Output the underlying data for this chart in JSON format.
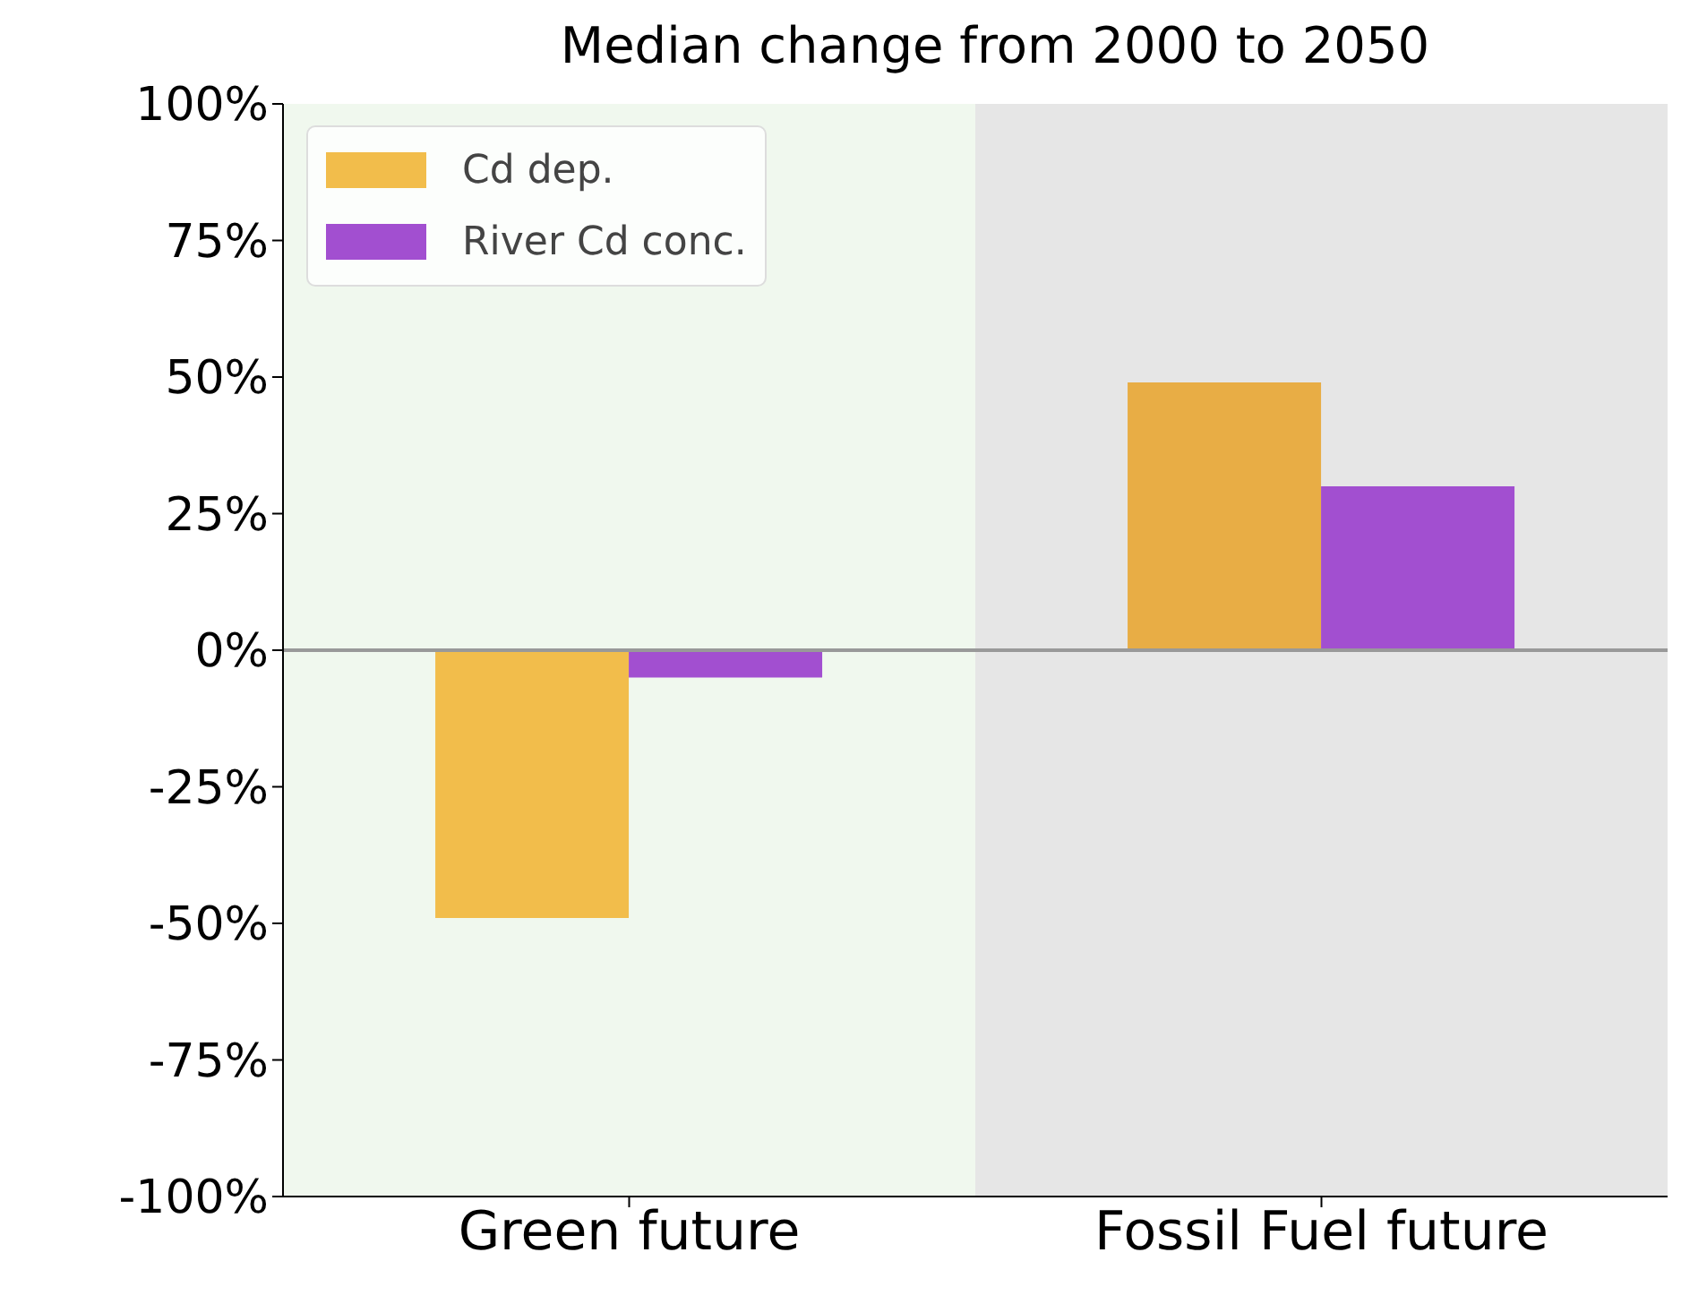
{
  "chart_data": {
    "type": "bar",
    "title": "Median change from 2000 to 2050",
    "categories": [
      "Green future",
      "Fossil Fuel future"
    ],
    "series": [
      {
        "name": "Cd dep.",
        "color": "#f2bd4b",
        "colors": [
          "#f2bd4b",
          "#e8ad45"
        ],
        "values": [
          -49,
          49
        ]
      },
      {
        "name": "River Cd conc.",
        "color": "#a24fd0",
        "values": [
          -5,
          30
        ]
      }
    ],
    "ylim": [
      -100,
      100
    ],
    "yticks": [
      {
        "value": -100,
        "label": "-100%"
      },
      {
        "value": -75,
        "label": "-75%"
      },
      {
        "value": -50,
        "label": "-50%"
      },
      {
        "value": -25,
        "label": "-25%"
      },
      {
        "value": 0,
        "label": "0%"
      },
      {
        "value": 25,
        "label": "25%"
      },
      {
        "value": 50,
        "label": "50%"
      },
      {
        "value": 75,
        "label": "75%"
      },
      {
        "value": 100,
        "label": "100%"
      }
    ],
    "ref_lines": [
      {
        "axis": "y",
        "value": 0,
        "color": "#999999"
      }
    ],
    "bands": [
      {
        "axis": "x",
        "from": "Green future",
        "to": "Green future",
        "color": "#f0f8ee"
      },
      {
        "axis": "x",
        "from": "Fossil Fuel future",
        "to": "Fossil Fuel future",
        "color": "#e6e6e6"
      }
    ],
    "legend": "top left",
    "grid": false
  }
}
